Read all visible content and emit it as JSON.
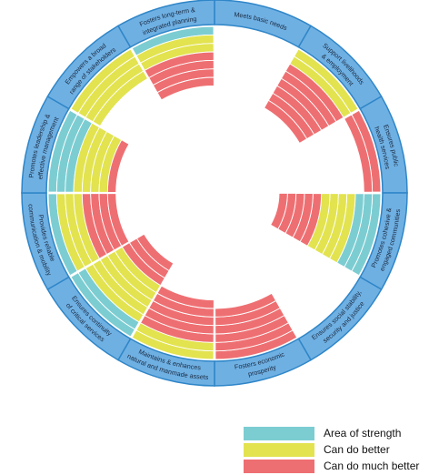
{
  "chart_data": {
    "type": "radial-bar",
    "rings_total": 12,
    "ring_order_from_outside": [
      "strength",
      "better",
      "much_better"
    ],
    "categories": [
      {
        "label": "Meets basic needs",
        "strength": 0,
        "better": 0,
        "much_better": 0
      },
      {
        "label": "Support livelihoods & employment",
        "strength": 0,
        "better": 2,
        "much_better": 6
      },
      {
        "label": "Ensures public health services",
        "strength": 0,
        "better": 0,
        "much_better": 2
      },
      {
        "label": "Promotes cohesive & engaged communities",
        "strength": 3,
        "better": 4,
        "much_better": 5
      },
      {
        "label": "Ensures social stability, security and justice",
        "strength": 0,
        "better": 0,
        "much_better": 0
      },
      {
        "label": "Fosters economic prosperity",
        "strength": 0,
        "better": 0,
        "much_better": 6
      },
      {
        "label": "Maintains & enhances natural and manmade assets",
        "strength": 0,
        "better": 2,
        "much_better": 5
      },
      {
        "label": "Ensures continuity of critical services",
        "strength": 2,
        "better": 5,
        "much_better": 3
      },
      {
        "label": "Provides reliable communication & mobility",
        "strength": 1,
        "better": 3,
        "much_better": 4
      },
      {
        "label": "Promotes leadership & effective management",
        "strength": 3,
        "better": 4,
        "much_better": 1
      },
      {
        "label": "Empowers a broad range of stakeholders",
        "strength": 0,
        "better": 4,
        "much_better": 0
      },
      {
        "label": "Fosters long-term & integrated planning",
        "strength": 1,
        "better": 2,
        "much_better": 4
      }
    ],
    "legend": [
      {
        "key": "strength",
        "label": "Area of strength",
        "color": "#7ccdd2"
      },
      {
        "key": "better",
        "label": "Can do better",
        "color": "#e2e34f"
      },
      {
        "key": "much_better",
        "label": "Can do much better",
        "color": "#ee6f72"
      }
    ]
  },
  "colors": {
    "label_band": "#6fb0e3",
    "label_band_border": "#2f86c8",
    "label_text": "#1a2a40",
    "ring_gap": "#ffffff"
  }
}
